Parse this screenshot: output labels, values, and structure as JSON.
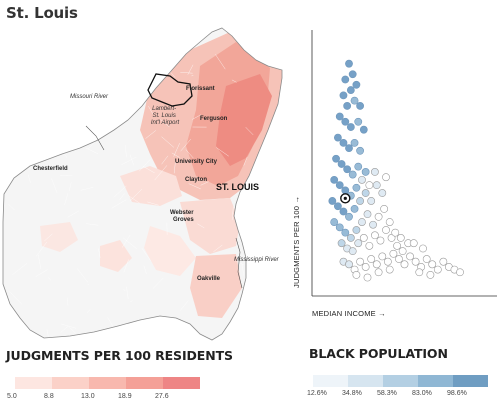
{
  "title": "St. Louis",
  "map": {
    "labels": {
      "missouri_river": "Missouri River",
      "florissant": "Florissant",
      "airport": "Lambert-\nSt. Louis\nInt'l Airport",
      "ferguson": "Ferguson",
      "chesterfield": "Chesterfield",
      "university_city": "University City",
      "clayton": "Clayton",
      "st_louis": "ST. LOUIS",
      "webster_groves": "Webster\nGroves",
      "mississippi_river": "Mississippi River",
      "oakville": "Oakville"
    },
    "colors": {
      "outline": "#8a8a8a",
      "tract_light": "#f4f4f4",
      "red_high": "#ef8a8a"
    }
  },
  "legend_judgments": {
    "heading": "JUDGMENTS PER 100 RESIDENTS",
    "colors": [
      "#fde6e1",
      "#fbd1c8",
      "#f8b8ae",
      "#f4a097",
      "#ee8585"
    ],
    "labels": [
      "5.0",
      "8.8",
      "13.0",
      "18.9",
      "27.6"
    ]
  },
  "legend_black_population": {
    "heading": "BLACK POPULATION",
    "colors": [
      "#eef4f9",
      "#d6e5f0",
      "#b3cfe3",
      "#8fb7d4",
      "#6f9dc2"
    ],
    "labels": [
      "12.6%",
      "34.8%",
      "58.3%",
      "83.0%",
      "98.6%"
    ]
  },
  "chart_data": {
    "type": "scatter",
    "title": "",
    "xlabel": "MEDIAN INCOME →",
    "ylabel": "JUDGMENTS PER 100 →",
    "xlim": [
      0,
      100
    ],
    "ylim": [
      0,
      100
    ],
    "grid": false,
    "color_encoding": "Black population share (light to dark blue)",
    "points": [
      [
        20,
        88,
        4
      ],
      [
        22,
        84,
        4
      ],
      [
        18,
        82,
        4
      ],
      [
        21,
        78,
        4
      ],
      [
        24,
        80,
        4
      ],
      [
        17,
        76,
        4
      ],
      [
        19,
        72,
        4
      ],
      [
        23,
        74,
        3
      ],
      [
        26,
        72,
        4
      ],
      [
        15,
        68,
        4
      ],
      [
        18,
        66,
        4
      ],
      [
        21,
        64,
        4
      ],
      [
        25,
        66,
        3
      ],
      [
        28,
        63,
        4
      ],
      [
        14,
        60,
        4
      ],
      [
        17,
        58,
        4
      ],
      [
        20,
        56,
        4
      ],
      [
        23,
        58,
        3
      ],
      [
        26,
        55,
        3
      ],
      [
        13,
        52,
        4
      ],
      [
        16,
        50,
        4
      ],
      [
        19,
        48,
        4
      ],
      [
        22,
        46,
        3
      ],
      [
        25,
        49,
        3
      ],
      [
        29,
        47,
        3
      ],
      [
        12,
        44,
        4
      ],
      [
        15,
        42,
        4
      ],
      [
        18,
        40,
        4
      ],
      [
        21,
        38,
        3
      ],
      [
        24,
        41,
        3
      ],
      [
        11,
        36,
        4
      ],
      [
        14,
        34,
        4
      ],
      [
        17,
        32,
        4
      ],
      [
        20,
        30,
        3
      ],
      [
        23,
        33,
        3
      ],
      [
        26,
        36,
        2
      ],
      [
        29,
        39,
        2
      ],
      [
        32,
        36,
        1
      ],
      [
        35,
        42,
        1
      ],
      [
        38,
        39,
        1
      ],
      [
        12,
        28,
        3
      ],
      [
        15,
        26,
        3
      ],
      [
        18,
        24,
        3
      ],
      [
        21,
        22,
        2
      ],
      [
        24,
        25,
        2
      ],
      [
        27,
        28,
        1
      ],
      [
        30,
        31,
        1
      ],
      [
        33,
        27,
        1
      ],
      [
        36,
        30,
        0
      ],
      [
        39,
        33,
        0
      ],
      [
        16,
        20,
        2
      ],
      [
        19,
        18,
        1
      ],
      [
        22,
        17,
        1
      ],
      [
        25,
        20,
        1
      ],
      [
        28,
        22,
        0
      ],
      [
        31,
        19,
        0
      ],
      [
        34,
        23,
        0
      ],
      [
        37,
        21,
        0
      ],
      [
        40,
        25,
        0
      ],
      [
        43,
        22,
        0
      ],
      [
        17,
        13,
        1
      ],
      [
        20,
        12,
        1
      ],
      [
        23,
        10,
        0
      ],
      [
        26,
        13,
        0
      ],
      [
        29,
        11,
        0
      ],
      [
        32,
        14,
        0
      ],
      [
        35,
        12,
        0
      ],
      [
        38,
        15,
        0
      ],
      [
        41,
        13,
        0
      ],
      [
        44,
        16,
        0
      ],
      [
        47,
        14,
        0
      ],
      [
        50,
        12,
        0
      ],
      [
        53,
        15,
        0
      ],
      [
        56,
        13,
        0
      ],
      [
        59,
        11,
        0
      ],
      [
        62,
        14,
        0
      ],
      [
        65,
        12,
        0
      ],
      [
        68,
        10,
        0
      ],
      [
        71,
        13,
        0
      ],
      [
        74,
        11,
        0
      ],
      [
        46,
        19,
        0
      ],
      [
        49,
        17,
        0
      ],
      [
        52,
        20,
        0
      ],
      [
        42,
        28,
        0
      ],
      [
        45,
        24,
        0
      ],
      [
        48,
        22,
        0
      ],
      [
        24,
        8,
        0
      ],
      [
        30,
        7,
        0
      ],
      [
        36,
        9,
        0
      ],
      [
        42,
        10,
        0
      ],
      [
        58,
        9,
        0
      ],
      [
        64,
        8,
        0
      ],
      [
        77,
        10,
        0
      ],
      [
        80,
        9,
        0
      ],
      [
        55,
        20,
        0
      ],
      [
        60,
        18,
        0
      ],
      [
        31,
        42,
        0
      ],
      [
        27,
        44,
        1
      ],
      [
        34,
        47,
        1
      ],
      [
        40,
        45,
        0
      ]
    ],
    "highlight": [
      18,
      37
    ],
    "point_colors": [
      "#ffffff",
      "#dce8f2",
      "#b9d2e6",
      "#8fb5d3",
      "#6a99c2"
    ]
  }
}
